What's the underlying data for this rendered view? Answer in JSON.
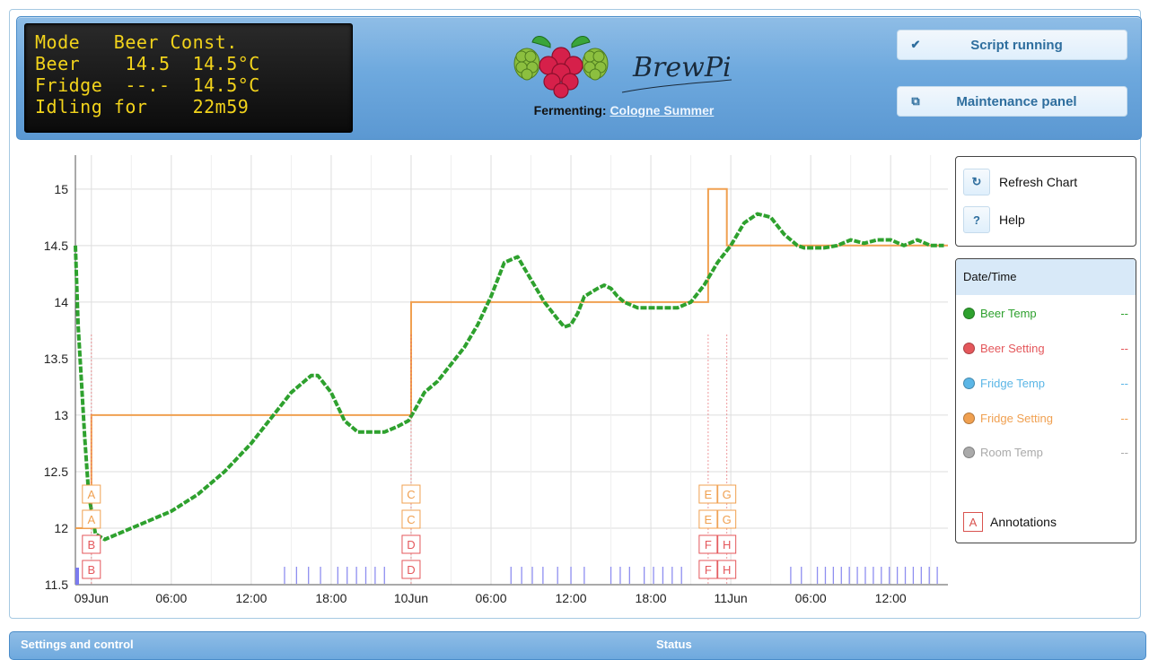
{
  "lcd": {
    "lines": [
      "Mode   Beer Const.",
      "Beer    14.5  14.5°C",
      "Fridge  --.-  14.5°C",
      "Idling for    22m59"
    ]
  },
  "header": {
    "logo_text": "BrewPi",
    "fermenting_label": "Fermenting:",
    "beer_name": "Cologne Summer",
    "script_button": "Script running",
    "script_icon": "check-icon",
    "maintenance_button": "Maintenance panel",
    "maintenance_icon": "window-icon"
  },
  "controls": {
    "refresh_label": "Refresh Chart",
    "help_label": "Help",
    "refresh_icon": "refresh-icon",
    "help_icon": "question-icon"
  },
  "legend": {
    "header": "Date/Time",
    "items": [
      {
        "label": "Beer Temp",
        "value": "--",
        "color": "#2ea12e"
      },
      {
        "label": "Beer Setting",
        "value": "--",
        "color": "#e4575b"
      },
      {
        "label": "Fridge Temp",
        "value": "--",
        "color": "#5bb6e6"
      },
      {
        "label": "Fridge Setting",
        "value": "--",
        "color": "#f0a050"
      },
      {
        "label": "Room Temp",
        "value": "--",
        "color": "#aaaaaa"
      }
    ],
    "annotation_letter": "A",
    "annotation_label": "Annotations"
  },
  "bottom": {
    "left_tab": "Settings and control",
    "right_tab": "Status"
  },
  "chart_data": {
    "type": "line",
    "x_start": "09 Jun 00:00",
    "x_unit": "hours",
    "xlim": [
      -1.2,
      64.3
    ],
    "ylim": [
      11.5,
      15.3
    ],
    "yticks": [
      11.5,
      12,
      12.5,
      13,
      13.5,
      14,
      14.5,
      15
    ],
    "ytick_labels": [
      "11.5",
      "12",
      "12.5",
      "13",
      "13.5",
      "14",
      "14.5",
      "15"
    ],
    "xticks": [
      0,
      6,
      12,
      18,
      24,
      30,
      36,
      42,
      48,
      54,
      60
    ],
    "xtick_labels": [
      "09Jun",
      "06:00",
      "12:00",
      "18:00",
      "10Jun",
      "06:00",
      "12:00",
      "18:00",
      "11Jun",
      "06:00",
      "12:00"
    ],
    "grid": true,
    "series": [
      {
        "name": "Fridge Setting",
        "color": "#f0a050",
        "step": true,
        "x": [
          -1.2,
          0,
          0,
          24,
          24,
          46.3,
          46.3,
          47.7,
          47.7,
          64.3
        ],
        "y": [
          12,
          12,
          13,
          13,
          14,
          14,
          15,
          15,
          14.5,
          14.5
        ]
      },
      {
        "name": "Beer Temp",
        "color": "#2ea12e",
        "x": [
          -1.2,
          -1.0,
          -0.5,
          -0.2,
          0.3,
          1,
          2,
          4,
          6,
          8,
          10,
          12,
          13,
          14,
          15,
          16,
          16.5,
          17,
          18,
          19,
          20,
          21,
          22,
          23,
          23.8,
          24.3,
          25,
          26,
          27,
          28,
          29,
          30,
          31,
          32,
          32.5,
          33,
          34,
          35,
          35.5,
          36,
          36.5,
          37,
          38,
          38.5,
          39,
          39.5,
          40,
          41,
          42,
          43,
          44,
          45,
          46,
          47,
          48,
          49,
          50,
          51,
          52,
          53,
          53.5,
          54,
          55,
          56,
          57,
          58,
          59,
          60,
          61,
          62,
          63,
          64
        ],
        "y": [
          14.5,
          13.8,
          12.8,
          12.3,
          11.95,
          11.9,
          11.95,
          12.05,
          12.15,
          12.3,
          12.5,
          12.75,
          12.9,
          13.05,
          13.2,
          13.3,
          13.35,
          13.35,
          13.2,
          12.95,
          12.85,
          12.85,
          12.85,
          12.9,
          12.95,
          13.05,
          13.2,
          13.3,
          13.45,
          13.6,
          13.8,
          14.05,
          14.35,
          14.4,
          14.3,
          14.2,
          14.0,
          13.85,
          13.78,
          13.8,
          13.9,
          14.05,
          14.12,
          14.15,
          14.12,
          14.05,
          14.0,
          13.95,
          13.95,
          13.95,
          13.95,
          14.0,
          14.15,
          14.35,
          14.5,
          14.7,
          14.78,
          14.75,
          14.6,
          14.5,
          14.48,
          14.48,
          14.48,
          14.5,
          14.55,
          14.52,
          14.55,
          14.55,
          14.5,
          14.55,
          14.5,
          14.5
        ]
      }
    ],
    "annotations": [
      {
        "x": 0,
        "letters": [
          "A",
          "A",
          "B",
          "B"
        ]
      },
      {
        "x": 24,
        "letters": [
          "C",
          "C",
          "D",
          "D"
        ]
      },
      {
        "x": 46.3,
        "letters": [
          "E",
          "E",
          "F",
          "F"
        ]
      },
      {
        "x": 47.7,
        "letters": [
          "G",
          "G",
          "H",
          "H"
        ]
      }
    ]
  }
}
